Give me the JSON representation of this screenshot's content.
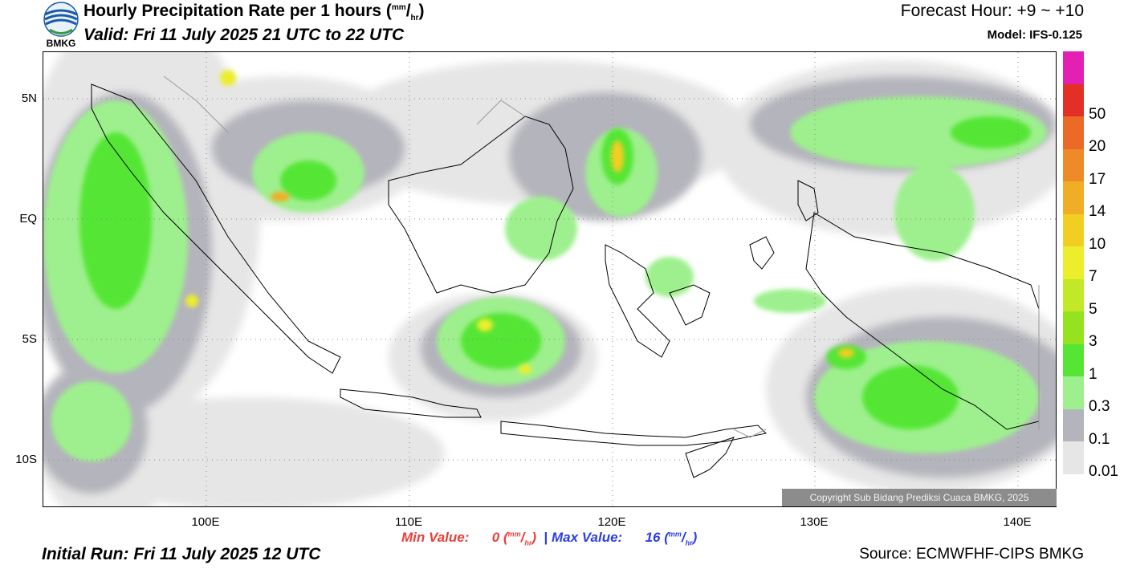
{
  "header": {
    "logo_text": "BMKG",
    "title": "Hourly Precipitation Rate per 1 hours (",
    "title_unit_num": "mm",
    "title_unit_den": "hr",
    "title_close": ")",
    "valid": "Valid: Fri 11 July 2025 21 UTC to 22 UTC",
    "forecast_hour": "Forecast Hour: +9 ~ +10",
    "model": "Model: IFS-0.125"
  },
  "axes": {
    "y_ticks": [
      {
        "label": "5N",
        "lat": 5
      },
      {
        "label": "EQ",
        "lat": 0
      },
      {
        "label": "5S",
        "lat": -5
      },
      {
        "label": "10S",
        "lat": -10
      }
    ],
    "x_ticks": [
      {
        "label": "100E",
        "lon": 100
      },
      {
        "label": "110E",
        "lon": 110
      },
      {
        "label": "120E",
        "lon": 120
      },
      {
        "label": "130E",
        "lon": 130
      },
      {
        "label": "140E",
        "lon": 140
      }
    ],
    "lon_range": [
      92,
      142
    ],
    "lat_range": [
      -12,
      7
    ]
  },
  "colorbar": {
    "levels": [
      {
        "label": "0.01",
        "color": "#e6e6e6"
      },
      {
        "label": "0.1",
        "color": "#b4b4bc"
      },
      {
        "label": "0.3",
        "color": "#9ef08e"
      },
      {
        "label": "1",
        "color": "#55e635"
      },
      {
        "label": "3",
        "color": "#94e31e"
      },
      {
        "label": "5",
        "color": "#c3e827"
      },
      {
        "label": "7",
        "color": "#ecee2c"
      },
      {
        "label": "10",
        "color": "#f3ce22"
      },
      {
        "label": "14",
        "color": "#f0ad26"
      },
      {
        "label": "17",
        "color": "#ee8a28"
      },
      {
        "label": "20",
        "color": "#ec6a28"
      },
      {
        "label": "50",
        "color": "#e23026"
      },
      {
        "label": "",
        "color": "#e41fb4"
      }
    ]
  },
  "stats": {
    "min_label": "Min Value:",
    "min_value": "0",
    "max_label": "Max Value:",
    "max_value": "16",
    "unit_num": "mm",
    "unit_den": "hr",
    "separator": "|"
  },
  "footer": {
    "initial_run": "Initial Run: Fri 11 July 2025 12 UTC",
    "source": "Source: ECMWFHF-CIPS BMKG",
    "copyright": "Copyright Sub Bidang Prediksi Cuaca BMKG, 2025"
  }
}
